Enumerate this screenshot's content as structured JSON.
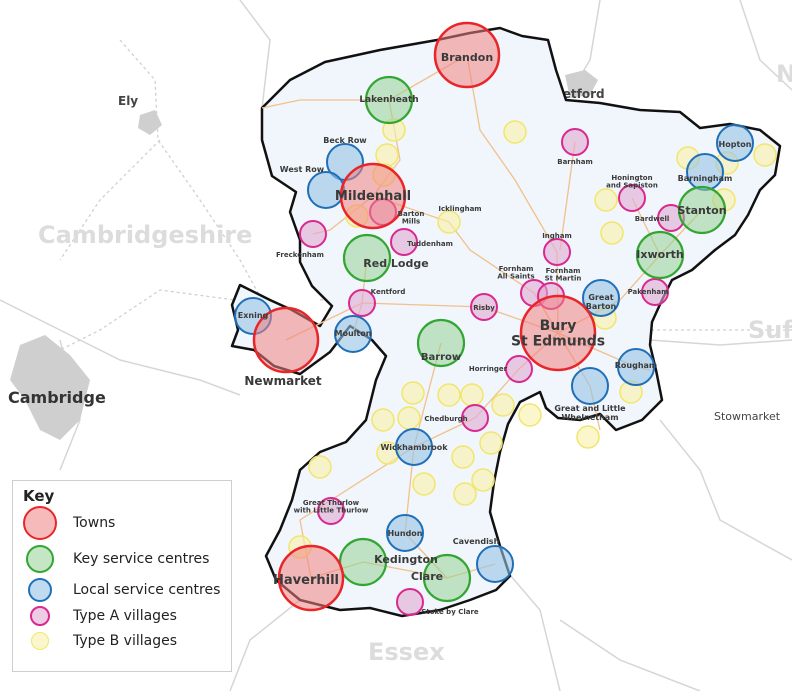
{
  "map": {
    "background_labels": {
      "cambridgeshire": "Cambridgeshire",
      "cambridge": "Cambridge",
      "ely": "Ely",
      "thetford": "Thetford",
      "stowmarket": "Stowmarket",
      "essex": "Essex",
      "suffolk_partial": "Suf",
      "norfolk_partial": "N"
    },
    "colors": {
      "district_fill": "#f0f6fb",
      "boundary": "#111111",
      "roads": "#f2c08c",
      "towns": "#e8262a",
      "key_service_centres": "#33a532",
      "local_service_centres": "#1f6fb8",
      "type_a_villages": "#d9298f",
      "type_b_villages": "#f2e66a"
    },
    "settlements": {
      "towns": [
        "Brandon",
        "Mildenhall",
        "Bury St Edmunds",
        "Newmarket",
        "Haverhill"
      ],
      "key_service_centres": [
        "Lakenheath",
        "Red Lodge",
        "Barrow",
        "Ixworth",
        "Stanton",
        "Kedington",
        "Clare"
      ],
      "local_service_centres": [
        "Beck Row",
        "West Row",
        "Exning",
        "Moulton",
        "Hopton",
        "Barningham",
        "Great Barton",
        "Rougham",
        "Great and Little Whelnetham",
        "Wickhambrook",
        "Hundon",
        "Cavendish"
      ],
      "type_a_villages": [
        "Barnham",
        "Honington and Sapiston",
        "Bardwell",
        "Ingham",
        "Fornham All Saints",
        "Fornham St Martin",
        "Pakenham",
        "Risby",
        "Horringer",
        "Chedburgh",
        "Great Thurlow with Little Thurlow",
        "Stoke by Clare",
        "Barton Mills",
        "Tuddenham",
        "Freckenham",
        "Kentford"
      ],
      "other_labels": [
        "Icklingham"
      ]
    }
  },
  "legend": {
    "title": "Key",
    "items": [
      {
        "label": "Towns",
        "category": "towns"
      },
      {
        "label": "Key service centres",
        "category": "key_service_centres"
      },
      {
        "label": "Local service centres",
        "category": "local_service_centres"
      },
      {
        "label": "Type A villages",
        "category": "type_a_villages"
      },
      {
        "label": "Type B villages",
        "category": "type_b_villages"
      }
    ]
  }
}
